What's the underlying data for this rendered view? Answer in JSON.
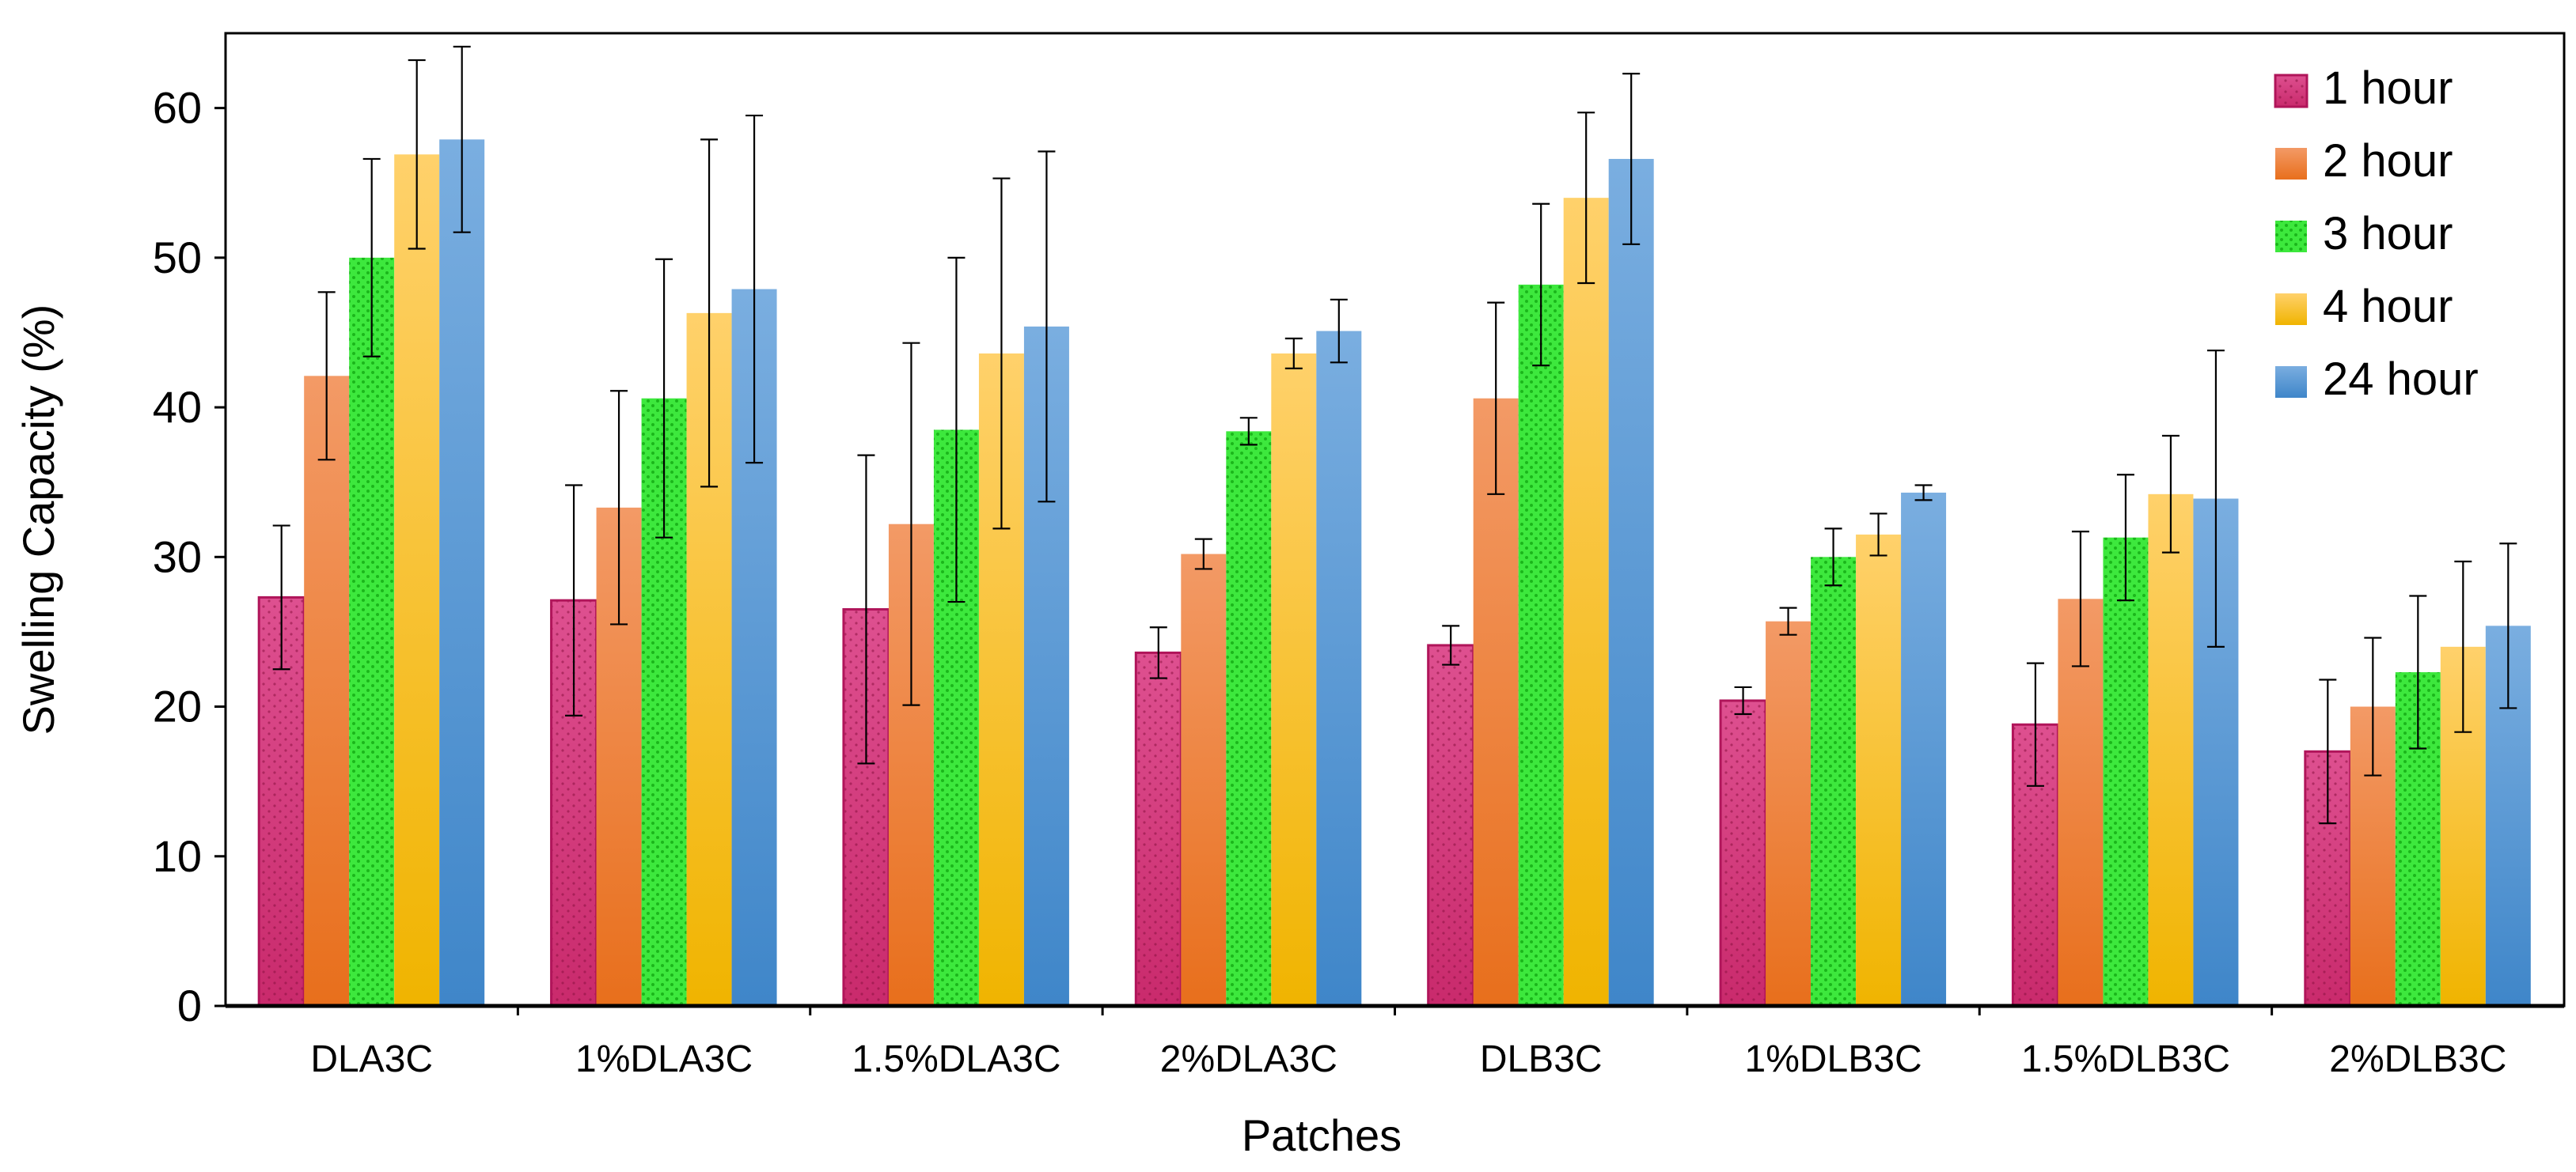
{
  "chart_data": {
    "type": "bar",
    "title": "",
    "xlabel": "Patches",
    "ylabel": "Swelling Capacity (%)",
    "ylim": [
      0,
      65
    ],
    "yticks": [
      0,
      10,
      20,
      30,
      40,
      50,
      60
    ],
    "grid": false,
    "legend_position": "top-right",
    "categories": [
      "DLA3C",
      "1%DLA3C",
      "1.5%DLA3C",
      "2%DLA3C",
      "DLB3C",
      "1%DLB3C",
      "1.5%DLB3C",
      "2%DLB3C"
    ],
    "series": [
      {
        "name": "1 hour",
        "color": "#cc2f6f",
        "pattern": "dots",
        "values": [
          27.3,
          27.1,
          26.5,
          23.6,
          24.1,
          20.4,
          18.8,
          17.0
        ],
        "errors": [
          4.8,
          7.7,
          10.3,
          1.7,
          1.3,
          0.9,
          4.1,
          4.8
        ]
      },
      {
        "name": "2 hour",
        "color": "#ee7b35",
        "pattern": "none",
        "values": [
          42.1,
          33.3,
          32.2,
          30.2,
          40.6,
          25.7,
          27.2,
          20.0
        ],
        "errors": [
          5.6,
          7.8,
          12.1,
          1.0,
          6.4,
          0.9,
          4.5,
          4.6
        ]
      },
      {
        "name": "3 hour",
        "color": "#33e933",
        "pattern": "dots",
        "values": [
          50.0,
          40.6,
          38.5,
          38.4,
          48.2,
          30.0,
          31.3,
          22.3
        ],
        "errors": [
          6.6,
          9.3,
          11.5,
          0.9,
          5.4,
          1.9,
          4.2,
          5.1
        ]
      },
      {
        "name": "4 hour",
        "color": "#fbbf1e",
        "pattern": "none",
        "values": [
          56.9,
          46.3,
          43.6,
          43.6,
          54.0,
          31.5,
          34.2,
          24.0
        ],
        "errors": [
          6.3,
          11.6,
          11.7,
          1.0,
          5.7,
          1.4,
          3.9,
          5.7
        ]
      },
      {
        "name": "24 hour",
        "color": "#5b9bd5",
        "pattern": "none",
        "values": [
          57.9,
          47.9,
          45.4,
          45.1,
          56.6,
          34.3,
          33.9,
          25.4
        ],
        "errors": [
          6.2,
          11.6,
          11.7,
          2.1,
          5.7,
          0.5,
          9.9,
          5.5
        ]
      }
    ]
  }
}
